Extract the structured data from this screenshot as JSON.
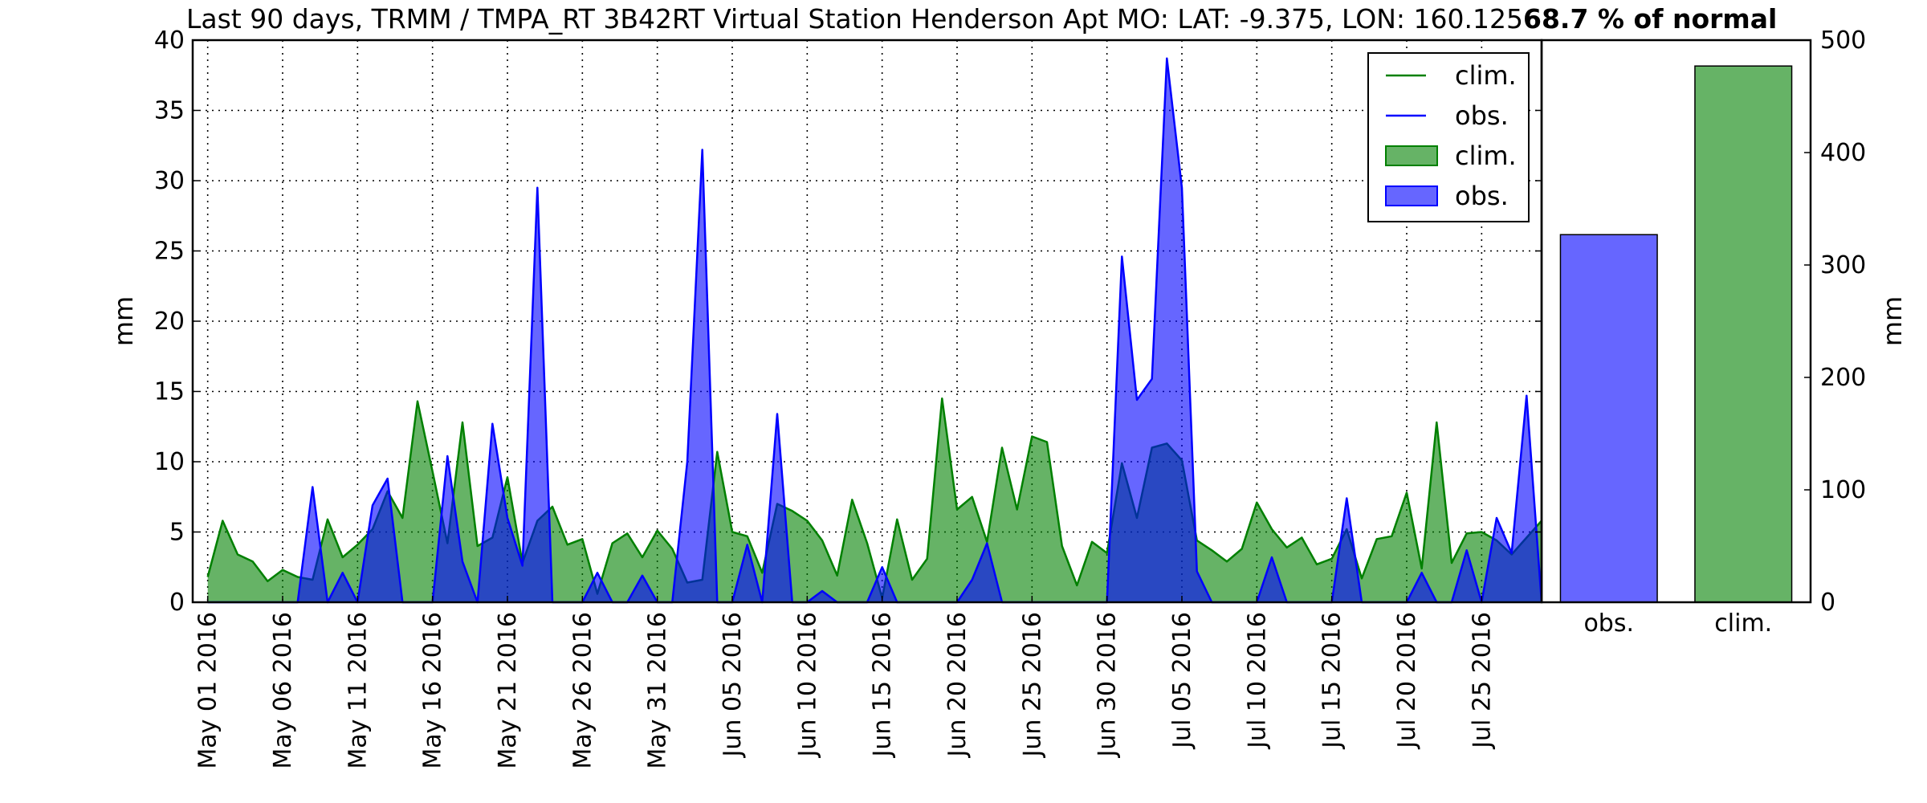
{
  "chart_data": [
    {
      "type": "area",
      "title": "Last 90 days, TRMM / TMPA_RT 3B42RT Virtual Station Henderson Apt MO: LAT: -9.375, LON: 160.125",
      "title_bold": "68.7 % of normal",
      "ylabel": "mm",
      "xlabel": "",
      "ylim": [
        0,
        40
      ],
      "yticks": [
        0,
        5,
        10,
        15,
        20,
        25,
        30,
        35,
        40
      ],
      "xlim_days": [
        -1,
        89
      ],
      "start_date": "2016-04-30",
      "x_tick_labels": [
        "May 01 2016",
        "May 06 2016",
        "May 11 2016",
        "May 16 2016",
        "May 21 2016",
        "May 26 2016",
        "May 31 2016",
        "Jun 05 2016",
        "Jun 10 2016",
        "Jun 15 2016",
        "Jun 20 2016",
        "Jun 25 2016",
        "Jun 30 2016",
        "Jul 05 2016",
        "Jul 10 2016",
        "Jul 15 2016",
        "Jul 20 2016",
        "Jul 25 2016"
      ],
      "grid": true,
      "legend": {
        "placement": "top-right",
        "entries": [
          {
            "label": "clim.",
            "kind": "line",
            "color": "#008000"
          },
          {
            "label": "obs.",
            "kind": "line",
            "color": "#0000ff"
          },
          {
            "label": "clim.",
            "kind": "patch",
            "color": "#008000"
          },
          {
            "label": "obs.",
            "kind": "patch",
            "color": "#0000ff"
          }
        ]
      },
      "series": [
        {
          "name": "clim.",
          "color": "#008000",
          "values": [
            1.8,
            5.8,
            3.4,
            2.9,
            1.5,
            2.3,
            1.8,
            1.6,
            5.9,
            3.2,
            4.1,
            5.2,
            7.9,
            6.0,
            14.3,
            9.3,
            4.2,
            12.8,
            4.0,
            4.6,
            8.9,
            2.8,
            5.8,
            6.8,
            4.1,
            4.5,
            0.6,
            4.2,
            4.9,
            3.2,
            5.1,
            3.8,
            1.4,
            1.6,
            10.7,
            5.0,
            4.7,
            2.1,
            7.0,
            6.5,
            5.8,
            4.4,
            1.9,
            7.3,
            4.2,
            0.3,
            5.9,
            1.6,
            3.1,
            14.5,
            6.6,
            7.5,
            4.3,
            11.0,
            6.6,
            11.8,
            11.4,
            4.0,
            1.2,
            4.3,
            3.5,
            9.9,
            6.0,
            11.0,
            11.3,
            10.1,
            4.4,
            3.7,
            2.9,
            3.8,
            7.1,
            5.2,
            3.9,
            4.6,
            2.7,
            3.1,
            5.2,
            1.7,
            4.5,
            4.7,
            7.8,
            2.4,
            12.8,
            2.8,
            4.9,
            5.0,
            4.4,
            3.4,
            4.6,
            5.8
          ]
        },
        {
          "name": "obs.",
          "color": "#0000ff",
          "values": [
            0,
            0,
            0,
            0,
            0,
            0,
            0,
            8.2,
            0,
            2.1,
            0,
            6.9,
            8.8,
            0,
            0,
            0,
            10.4,
            2.9,
            0,
            12.7,
            6.0,
            2.6,
            29.5,
            0,
            0,
            0,
            2.1,
            0,
            0,
            1.9,
            0,
            0,
            10.0,
            32.2,
            0,
            0,
            4.1,
            0,
            13.4,
            0,
            0,
            0.8,
            0,
            0,
            0,
            2.5,
            0,
            0,
            0,
            0,
            0,
            1.6,
            4.2,
            0,
            0,
            0,
            0,
            0,
            0,
            0,
            0,
            24.6,
            14.4,
            15.9,
            38.7,
            29.5,
            2.2,
            0,
            0,
            0,
            0,
            3.2,
            0,
            0,
            0,
            0,
            7.4,
            0,
            0,
            0,
            0,
            2.1,
            0,
            0,
            3.7,
            0,
            6.0,
            3.5,
            14.7,
            0
          ]
        }
      ]
    },
    {
      "type": "bar",
      "categories": [
        "obs.",
        "clim."
      ],
      "values": [
        327,
        477
      ],
      "colors": [
        "#0000ff",
        "#008000"
      ],
      "ylabel": "mm",
      "ylim": [
        0,
        500
      ],
      "yticks": [
        0,
        100,
        200,
        300,
        400,
        500
      ],
      "grid": false
    }
  ]
}
